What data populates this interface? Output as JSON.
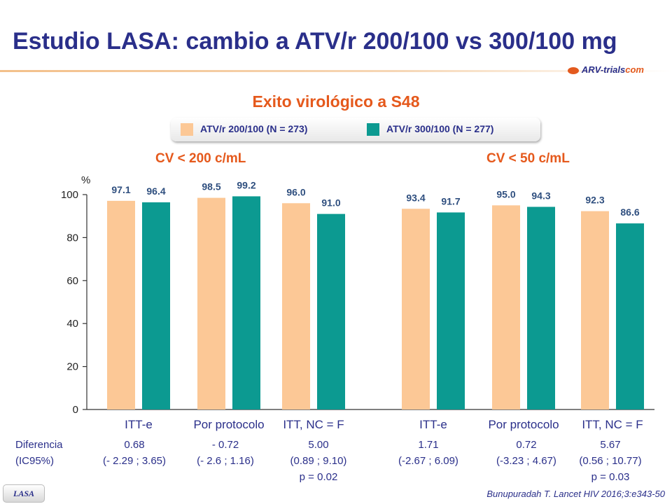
{
  "title": "Estudio LASA: cambio a ATV/r 200/100 vs 300/100 mg",
  "logo": {
    "prefix": "ARV-trials",
    "suffix": "com"
  },
  "colors": {
    "arm1": "#fcc896",
    "arm2": "#0c9a91",
    "title": "#2a2f8a",
    "accent": "#e5591c"
  },
  "chart_data": {
    "type": "bar",
    "title": "Exito virológico a S48",
    "ylabel": "%",
    "ylim": [
      0,
      100
    ],
    "yticks": [
      0,
      20,
      40,
      60,
      80,
      100
    ],
    "groups": [
      "CV < 200 c/mL",
      "CV < 50 c/mL"
    ],
    "categories": [
      "ITT-e",
      "Por protocolo",
      "ITT, NC = F",
      "ITT-e",
      "Por protocolo",
      "ITT, NC = F"
    ],
    "series": [
      {
        "name": "ATV/r 200/100 (N = 273)",
        "values": [
          97.1,
          98.5,
          96.0,
          93.4,
          95.0,
          92.3
        ]
      },
      {
        "name": "ATV/r 300/100 (N = 277)",
        "values": [
          96.4,
          99.2,
          91.0,
          91.7,
          94.3,
          86.6
        ]
      }
    ],
    "value_labels": [
      [
        "97.1",
        "98.5",
        "96.0",
        "93.4",
        "95.0",
        "92.3"
      ],
      [
        "96.4",
        "99.2",
        "91.0",
        "91.7",
        "94.3",
        "86.6"
      ]
    ]
  },
  "differences": {
    "row_label": [
      "Diferencia",
      "(IC95%)"
    ],
    "items": [
      {
        "diff": "0.68",
        "ci": "(- 2.29 ; 3.65)",
        "p": ""
      },
      {
        "diff": "- 0.72",
        "ci": "(- 2.6 ; 1.16)",
        "p": ""
      },
      {
        "diff": "5.00",
        "ci": "(0.89 ; 9.10)",
        "p": "p = 0.02"
      },
      {
        "diff": "1.71",
        "ci": "(-2.67 ; 6.09)",
        "p": ""
      },
      {
        "diff": "0.72",
        "ci": "(-3.23 ; 4.67)",
        "p": ""
      },
      {
        "diff": "5.67",
        "ci": "(0.56 ; 10.77)",
        "p": "p = 0.03"
      }
    ]
  },
  "citation": "Bunupuradah T. Lancet HIV 2016;3:e343-50",
  "badge": "LASA"
}
